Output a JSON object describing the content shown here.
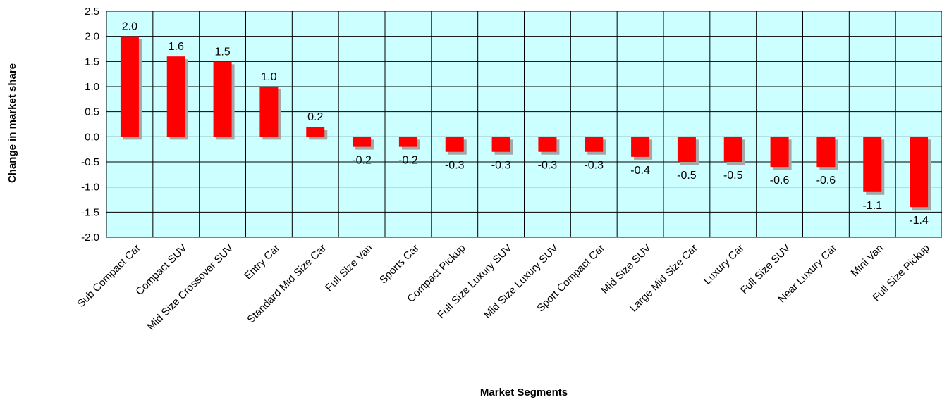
{
  "chart_data": {
    "type": "bar",
    "title": "",
    "xlabel": "Market Segments",
    "ylabel": "Change in market share",
    "ylim": [
      -2.0,
      2.5
    ],
    "yticks": [
      "2.5",
      "2.0",
      "1.5",
      "1.0",
      "0.5",
      "0.0",
      "-0.5",
      "-1.0",
      "-1.5",
      "-2.0"
    ],
    "grid": true,
    "legend": "none",
    "categories": [
      "Sub Compact Car",
      "Compact SUV",
      "Mid Size Crossover SUV",
      "Entry Car",
      "Standard Mid Size Car",
      "Full Size Van",
      "Sports Car",
      "Compact Pickup",
      "Full Size Luxury SUV",
      "Mid Size Luxury SUV",
      "Sport Compact Car",
      "Mid Size SUV",
      "Large Mid Size Car",
      "Luxury Car",
      "Full Size SUV",
      "Near Luxury Car",
      "Mini Van",
      "Full Size Pickup"
    ],
    "values": [
      2.0,
      1.6,
      1.5,
      1.0,
      0.2,
      -0.2,
      -0.2,
      -0.3,
      -0.3,
      -0.3,
      -0.3,
      -0.4,
      -0.5,
      -0.5,
      -0.6,
      -0.6,
      -1.1,
      -1.4
    ],
    "data_labels": [
      "2.0",
      "1.6",
      "1.5",
      "1.0",
      "0.2",
      "-0.2",
      "-0.2",
      "-0.3",
      "-0.3",
      "-0.3",
      "-0.3",
      "-0.4",
      "-0.5",
      "-0.5",
      "-0.6",
      "-0.6",
      "-1.1",
      "-1.4"
    ],
    "colors": {
      "bar": "#ff0000",
      "shadow": "#a6a6a6",
      "plot_bg": "#ccffff",
      "grid": "#000000"
    }
  }
}
